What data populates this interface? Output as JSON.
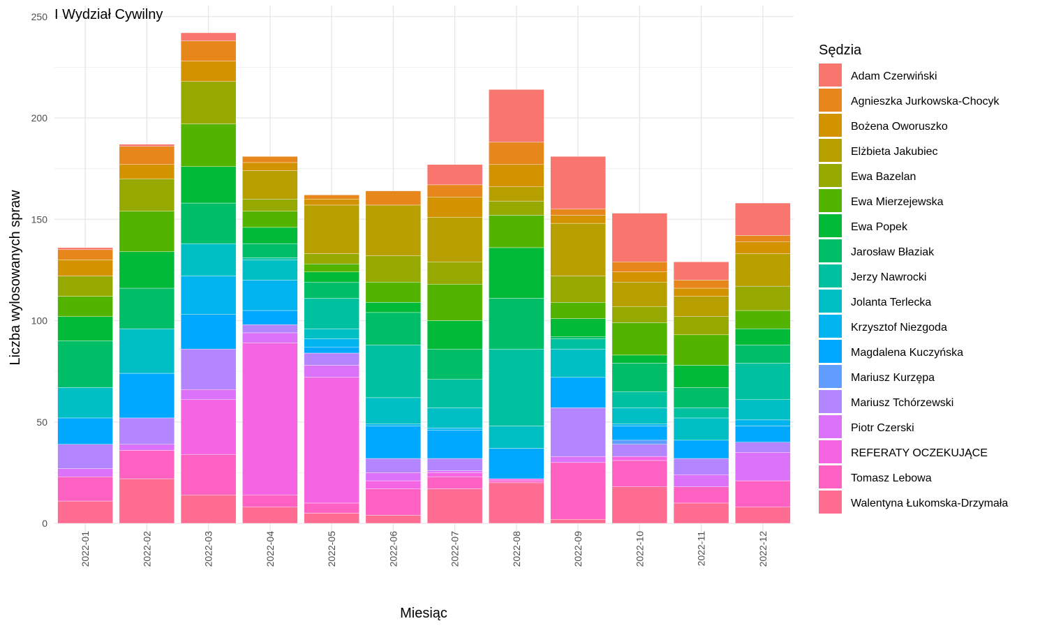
{
  "chart_data": {
    "type": "bar",
    "stacked": true,
    "title": "I Wydział Cywilny",
    "xlabel": "Miesiąc",
    "ylabel": "Liczba wylosowanych spraw",
    "ylim": [
      0,
      250
    ],
    "yticks": [
      0,
      50,
      100,
      150,
      200,
      250
    ],
    "grid": true,
    "legend_title": "Sędzia",
    "legend_position": "right",
    "categories": [
      "2022-01",
      "2022-02",
      "2022-03",
      "2022-04",
      "2022-05",
      "2022-06",
      "2022-07",
      "2022-08",
      "2022-09",
      "2022-10",
      "2022-11",
      "2022-12"
    ],
    "series": [
      {
        "name": "Walentyna Łukomska-Drzymała",
        "color": "#FF6C91",
        "values": [
          11,
          22,
          14,
          8,
          5,
          4,
          17,
          20,
          2,
          18,
          10,
          8
        ]
      },
      {
        "name": "Tomasz Lebowa",
        "color": "#FF61C3",
        "values": [
          12,
          14,
          20,
          6,
          5,
          13,
          6,
          1,
          28,
          13,
          8,
          13
        ]
      },
      {
        "name": "REFERATY OCZEKUJĄCE",
        "color": "#F564E3",
        "values": [
          0,
          0,
          27,
          75,
          62,
          4,
          2,
          1,
          0,
          2,
          0,
          0
        ]
      },
      {
        "name": "Piotr Czerski",
        "color": "#DC71FA",
        "values": [
          4,
          3,
          5,
          5,
          6,
          4,
          1,
          0,
          3,
          0,
          6,
          14
        ]
      },
      {
        "name": "Mariusz Tchórzewski",
        "color": "#B385FF",
        "values": [
          12,
          13,
          20,
          4,
          6,
          7,
          6,
          0,
          24,
          6,
          8,
          5
        ]
      },
      {
        "name": "Mariusz Kurzępa",
        "color": "#619CFF",
        "values": [
          0,
          0,
          0,
          0,
          0,
          0,
          0,
          0,
          0,
          2,
          0,
          0
        ]
      },
      {
        "name": "Magdalena Kuczyńska",
        "color": "#00A9FF",
        "values": [
          13,
          22,
          17,
          7,
          3,
          16,
          14,
          15,
          15,
          7,
          9,
          8
        ]
      },
      {
        "name": "Krzysztof Niezgoda",
        "color": "#00B4EF",
        "values": [
          0,
          0,
          19,
          15,
          4,
          1,
          1,
          0,
          0,
          1,
          0,
          3
        ]
      },
      {
        "name": "Jolanta Terlecka",
        "color": "#00BFC4",
        "values": [
          15,
          22,
          16,
          10,
          5,
          13,
          10,
          11,
          14,
          8,
          11,
          10
        ]
      },
      {
        "name": "Jerzy Nawrocki",
        "color": "#00C19F",
        "values": [
          0,
          0,
          0,
          1,
          15,
          26,
          14,
          38,
          5,
          8,
          5,
          18
        ]
      },
      {
        "name": "Jarosław Błaziak",
        "color": "#00BE67",
        "values": [
          23,
          20,
          20,
          7,
          8,
          16,
          15,
          25,
          1,
          14,
          10,
          9
        ]
      },
      {
        "name": "Ewa Popek",
        "color": "#00BA38",
        "values": [
          12,
          18,
          18,
          8,
          5,
          5,
          14,
          25,
          9,
          4,
          11,
          8
        ]
      },
      {
        "name": "Ewa Mierzejewska",
        "color": "#53B400",
        "values": [
          10,
          20,
          21,
          8,
          4,
          10,
          18,
          16,
          8,
          16,
          15,
          9
        ]
      },
      {
        "name": "Ewa Bazelan",
        "color": "#95A900",
        "values": [
          10,
          16,
          21,
          6,
          5,
          13,
          11,
          7,
          13,
          8,
          9,
          12
        ]
      },
      {
        "name": "Elżbieta Jakubiec",
        "color": "#B79F00",
        "values": [
          0,
          0,
          0,
          14,
          24,
          25,
          22,
          7,
          26,
          12,
          10,
          16
        ]
      },
      {
        "name": "Bożena Oworuszko",
        "color": "#D39200",
        "values": [
          8,
          7,
          10,
          4,
          3,
          0,
          10,
          11,
          4,
          5,
          4,
          6
        ]
      },
      {
        "name": "Agnieszka Jurkowska-Chocyk",
        "color": "#E7861B",
        "values": [
          5,
          9,
          10,
          3,
          2,
          7,
          6,
          11,
          3,
          5,
          4,
          3
        ]
      },
      {
        "name": "Adam Czerwiński",
        "color": "#F8766D",
        "values": [
          1,
          1,
          4,
          0,
          0,
          0,
          10,
          26,
          26,
          24,
          9,
          16
        ]
      }
    ]
  }
}
